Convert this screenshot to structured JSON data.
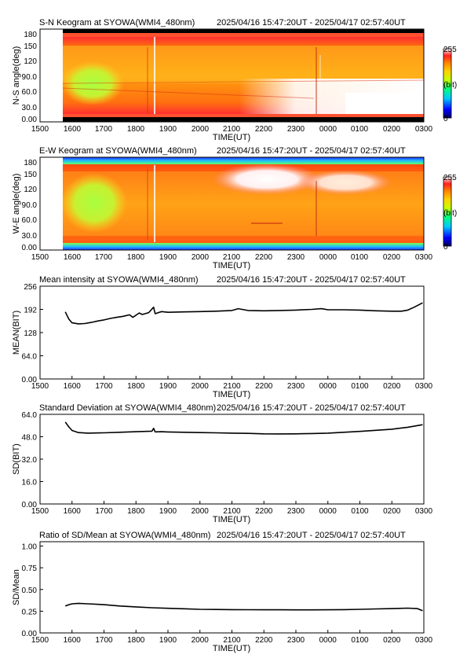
{
  "chart_data": [
    {
      "type": "heatmap",
      "panel": "sn-keogram",
      "title": "S-N Keogram at SYOWA(WMI4_480nm)",
      "time_range": "2025/04/16 15:47:20UT - 2025/04/17 02:57:40UT",
      "xlabel": "TIME(UT)",
      "ylabel": "N-S angle(deg)",
      "x_ticks": [
        "1500",
        "1600",
        "1700",
        "1800",
        "1900",
        "2000",
        "2100",
        "2200",
        "2300",
        "0000",
        "0100",
        "0200",
        "0300"
      ],
      "y_ticks": [
        "0.00",
        "30.0",
        "60.0",
        "90.0",
        "120",
        "150",
        "180"
      ],
      "ylim": [
        0,
        180
      ],
      "colorbar": {
        "min_label": "0",
        "max_label": "255",
        "unit_label": "(bit)"
      }
    },
    {
      "type": "heatmap",
      "panel": "ew-keogram",
      "title": "E-W Keogram at SYOWA(WMI4_480nm)",
      "time_range": "2025/04/16 15:47:20UT - 2025/04/17 02:57:40UT",
      "xlabel": "TIME(UT)",
      "ylabel": "W-E angle(deg)",
      "x_ticks": [
        "1500",
        "1600",
        "1700",
        "1800",
        "1900",
        "2000",
        "2100",
        "2200",
        "2300",
        "0000",
        "0100",
        "0200",
        "0300"
      ],
      "y_ticks": [
        "0.00",
        "30.0",
        "60.0",
        "90.0",
        "120",
        "150",
        "180"
      ],
      "ylim": [
        0,
        180
      ],
      "colorbar": {
        "min_label": "0",
        "max_label": "255",
        "unit_label": "(bit)"
      }
    },
    {
      "type": "line",
      "panel": "mean",
      "title": "Mean intensity at SYOWA(WMI4_480nm)",
      "time_range": "2025/04/16 15:47:20UT - 2025/04/17 02:57:40UT",
      "xlabel": "TIME(UT)",
      "ylabel": "MEAN(BIT)",
      "x_ticks": [
        "1500",
        "1600",
        "1700",
        "1800",
        "1900",
        "2000",
        "2100",
        "2200",
        "2300",
        "0000",
        "0100",
        "0200",
        "0300"
      ],
      "y_ticks": [
        "0.00",
        "64.0",
        "128",
        "192",
        "256"
      ],
      "ylim": [
        0,
        256
      ],
      "series": [
        {
          "x": [
            15.79,
            15.9,
            16.0,
            16.2,
            16.4,
            16.6,
            16.8,
            17.0,
            17.2,
            17.4,
            17.6,
            17.8,
            17.9,
            18.0,
            18.1,
            18.2,
            18.4,
            18.55,
            18.6,
            18.7,
            18.8,
            19.0,
            19.5,
            20.0,
            20.5,
            21.0,
            21.2,
            21.5,
            22.0,
            22.5,
            23.0,
            23.5,
            23.8,
            24.0,
            24.5,
            25.0,
            25.5,
            26.0,
            26.3,
            26.5,
            26.7,
            26.96
          ],
          "y": [
            185,
            165,
            155,
            152,
            153,
            156,
            160,
            163,
            167,
            170,
            173,
            177,
            170,
            176,
            182,
            178,
            183,
            198,
            180,
            183,
            186,
            184,
            185,
            186,
            187,
            189,
            194,
            189,
            188,
            189,
            190,
            192,
            194,
            191,
            191,
            190,
            188,
            187,
            187,
            190,
            198,
            210
          ]
        }
      ]
    },
    {
      "type": "line",
      "panel": "sd",
      "title": "Standard Deviation at SYOWA(WMI4_480nm)",
      "time_range": "2025/04/16 15:47:20UT - 2025/04/17 02:57:40UT",
      "xlabel": "TIME(UT)",
      "ylabel": "SD(BIT)",
      "x_ticks": [
        "1500",
        "1600",
        "1700",
        "1800",
        "1900",
        "2000",
        "2100",
        "2200",
        "2300",
        "0000",
        "0100",
        "0200",
        "0300"
      ],
      "y_ticks": [
        "0.00",
        "16.0",
        "32.0",
        "48.0",
        "64.0"
      ],
      "ylim": [
        0,
        64
      ],
      "series": [
        {
          "x": [
            15.79,
            15.9,
            16.0,
            16.2,
            16.5,
            17.0,
            17.5,
            18.0,
            18.5,
            18.55,
            18.6,
            18.8,
            19.0,
            19.5,
            20.0,
            20.5,
            21.0,
            21.5,
            22.0,
            22.5,
            23.0,
            23.5,
            24.0,
            24.5,
            25.0,
            25.5,
            26.0,
            26.5,
            26.96
          ],
          "y": [
            58.5,
            55,
            52.5,
            51,
            50.6,
            50.8,
            51.2,
            51.6,
            52,
            54,
            51.5,
            51.6,
            51.4,
            51.2,
            51,
            50.8,
            50.6,
            50.4,
            50.1,
            50,
            50.1,
            50.3,
            50.6,
            51.2,
            51.8,
            52.6,
            53.4,
            54.8,
            56.6
          ]
        }
      ]
    },
    {
      "type": "line",
      "panel": "ratio",
      "title": "Ratio of SD/Mean at SYOWA(WMI4_480nm)",
      "time_range": "2025/04/16 15:47:20UT - 2025/04/17 02:57:40UT",
      "xlabel": "TIME(UT)",
      "ylabel": "SD/Mean",
      "x_ticks": [
        "1500",
        "1600",
        "1700",
        "1800",
        "1900",
        "2000",
        "2100",
        "2200",
        "2300",
        "0000",
        "0100",
        "0200",
        "0300"
      ],
      "y_ticks": [
        "0.00",
        "0.25",
        "0.50",
        "0.75",
        "1.00"
      ],
      "ylim": [
        0,
        1.05
      ],
      "series": [
        {
          "x": [
            15.79,
            15.9,
            16.0,
            16.2,
            16.5,
            17.0,
            17.5,
            18.0,
            18.5,
            19.0,
            19.5,
            20.0,
            20.5,
            21.0,
            21.5,
            22.0,
            22.5,
            23.0,
            23.5,
            24.0,
            24.5,
            25.0,
            25.5,
            26.0,
            26.5,
            26.8,
            26.96
          ],
          "y": [
            0.31,
            0.325,
            0.335,
            0.34,
            0.335,
            0.325,
            0.31,
            0.3,
            0.29,
            0.283,
            0.278,
            0.272,
            0.27,
            0.268,
            0.267,
            0.266,
            0.266,
            0.265,
            0.265,
            0.266,
            0.268,
            0.272,
            0.276,
            0.28,
            0.285,
            0.28,
            0.255
          ]
        }
      ]
    }
  ]
}
